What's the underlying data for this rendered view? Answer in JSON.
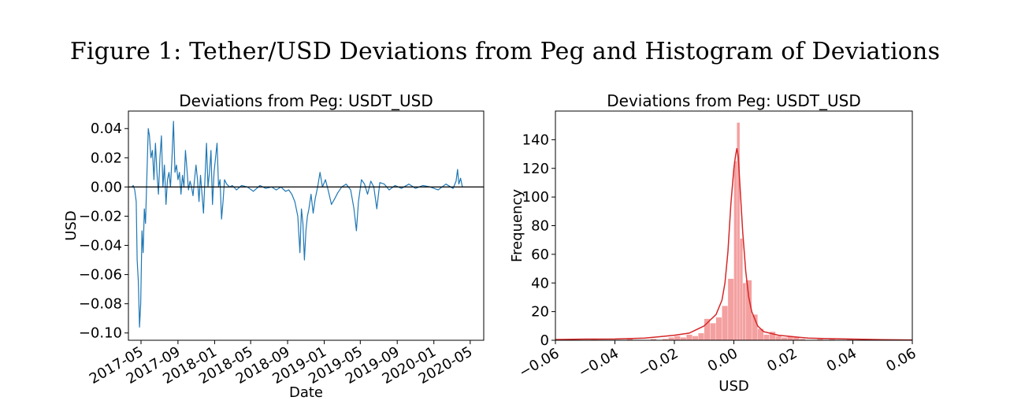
{
  "figure_title": "Figure 1: Tether/USD Deviations from Peg and Histogram of Deviations",
  "chart_data": [
    {
      "type": "line",
      "title": "Deviations from Peg: USDT_USD",
      "xlabel": "Date",
      "ylabel": "USD",
      "x_ticks": [
        "2017-05",
        "2017-09",
        "2018-01",
        "2018-05",
        "2018-09",
        "2019-01",
        "2019-05",
        "2019-09",
        "2020-01",
        "2020-05"
      ],
      "y_ticks": [
        "0.04",
        "0.02",
        "0.00",
        "−0.02",
        "−0.04",
        "−0.06",
        "−0.08",
        "−0.10"
      ],
      "ylim": [
        -0.105,
        0.052
      ],
      "xlim": [
        "2017-03-20",
        "2020-06-15"
      ],
      "hline": 0.0,
      "series": [
        {
          "color": "#1f77b4",
          "points": [
            [
              "2017-04-01",
              0.0
            ],
            [
              "2017-04-05",
              0.001
            ],
            [
              "2017-04-10",
              -0.002
            ],
            [
              "2017-04-15",
              -0.01
            ],
            [
              "2017-04-18",
              -0.05
            ],
            [
              "2017-04-22",
              -0.065
            ],
            [
              "2017-04-26",
              -0.096
            ],
            [
              "2017-04-30",
              -0.08
            ],
            [
              "2017-05-04",
              -0.03
            ],
            [
              "2017-05-08",
              -0.045
            ],
            [
              "2017-05-12",
              -0.015
            ],
            [
              "2017-05-16",
              -0.025
            ],
            [
              "2017-05-20",
              0.005
            ],
            [
              "2017-05-25",
              0.04
            ],
            [
              "2017-05-29",
              0.035
            ],
            [
              "2017-06-03",
              0.02
            ],
            [
              "2017-06-08",
              0.025
            ],
            [
              "2017-06-13",
              0.005
            ],
            [
              "2017-06-18",
              0.03
            ],
            [
              "2017-06-23",
              0.01
            ],
            [
              "2017-06-28",
              -0.005
            ],
            [
              "2017-07-03",
              0.02
            ],
            [
              "2017-07-08",
              0.035
            ],
            [
              "2017-07-13",
              0.0
            ],
            [
              "2017-07-18",
              0.015
            ],
            [
              "2017-07-23",
              -0.012
            ],
            [
              "2017-07-28",
              0.005
            ],
            [
              "2017-08-02",
              0.01
            ],
            [
              "2017-08-07",
              0.0
            ],
            [
              "2017-08-12",
              0.02
            ],
            [
              "2017-08-17",
              0.045
            ],
            [
              "2017-08-22",
              0.01
            ],
            [
              "2017-08-27",
              0.015
            ],
            [
              "2017-09-01",
              0.005
            ],
            [
              "2017-09-06",
              0.01
            ],
            [
              "2017-09-11",
              -0.005
            ],
            [
              "2017-09-16",
              0.008
            ],
            [
              "2017-09-21",
              0.0
            ],
            [
              "2017-09-26",
              0.025
            ],
            [
              "2017-10-01",
              0.012
            ],
            [
              "2017-10-06",
              -0.002
            ],
            [
              "2017-10-11",
              0.004
            ],
            [
              "2017-10-16",
              0.0
            ],
            [
              "2017-10-21",
              -0.006
            ],
            [
              "2017-10-26",
              0.005
            ],
            [
              "2017-10-31",
              0.015
            ],
            [
              "2017-11-05",
              0.005
            ],
            [
              "2017-11-10",
              -0.01
            ],
            [
              "2017-11-15",
              0.008
            ],
            [
              "2017-11-20",
              -0.005
            ],
            [
              "2017-11-25",
              -0.018
            ],
            [
              "2017-11-30",
              0.006
            ],
            [
              "2017-12-05",
              0.03
            ],
            [
              "2017-12-10",
              0.0
            ],
            [
              "2017-12-15",
              0.01
            ],
            [
              "2017-12-20",
              0.025
            ],
            [
              "2017-12-25",
              -0.012
            ],
            [
              "2017-12-30",
              0.01
            ],
            [
              "2018-01-04",
              0.02
            ],
            [
              "2018-01-09",
              0.03
            ],
            [
              "2018-01-14",
              0.0
            ],
            [
              "2018-01-19",
              0.005
            ],
            [
              "2018-01-24",
              -0.022
            ],
            [
              "2018-01-29",
              -0.01
            ],
            [
              "2018-02-03",
              0.005
            ],
            [
              "2018-02-10",
              0.002
            ],
            [
              "2018-02-20",
              0.0
            ],
            [
              "2018-03-01",
              0.001
            ],
            [
              "2018-03-15",
              -0.002
            ],
            [
              "2018-04-01",
              0.001
            ],
            [
              "2018-04-20",
              0.0
            ],
            [
              "2018-05-10",
              -0.003
            ],
            [
              "2018-06-01",
              0.001
            ],
            [
              "2018-06-20",
              -0.001
            ],
            [
              "2018-07-10",
              0.0
            ],
            [
              "2018-07-25",
              -0.002
            ],
            [
              "2018-08-10",
              0.0
            ],
            [
              "2018-08-25",
              -0.003
            ],
            [
              "2018-09-05",
              -0.002
            ],
            [
              "2018-09-15",
              -0.005
            ],
            [
              "2018-09-25",
              -0.01
            ],
            [
              "2018-10-05",
              -0.02
            ],
            [
              "2018-10-12",
              -0.045
            ],
            [
              "2018-10-17",
              -0.015
            ],
            [
              "2018-10-22",
              -0.025
            ],
            [
              "2018-10-27",
              -0.05
            ],
            [
              "2018-11-01",
              -0.03
            ],
            [
              "2018-11-06",
              -0.02
            ],
            [
              "2018-11-11",
              -0.015
            ],
            [
              "2018-11-18",
              -0.005
            ],
            [
              "2018-11-25",
              -0.018
            ],
            [
              "2018-12-02",
              -0.008
            ],
            [
              "2018-12-10",
              0.0
            ],
            [
              "2018-12-18",
              0.01
            ],
            [
              "2018-12-26",
              0.0
            ],
            [
              "2019-01-05",
              0.005
            ],
            [
              "2019-01-15",
              -0.003
            ],
            [
              "2019-01-25",
              -0.012
            ],
            [
              "2019-02-05",
              -0.008
            ],
            [
              "2019-02-15",
              -0.004
            ],
            [
              "2019-02-28",
              0.0
            ],
            [
              "2019-03-15",
              0.002
            ],
            [
              "2019-03-30",
              -0.002
            ],
            [
              "2019-04-10",
              -0.015
            ],
            [
              "2019-04-18",
              -0.03
            ],
            [
              "2019-04-25",
              -0.01
            ],
            [
              "2019-05-05",
              0.005
            ],
            [
              "2019-05-15",
              0.002
            ],
            [
              "2019-05-25",
              -0.005
            ],
            [
              "2019-06-05",
              0.004
            ],
            [
              "2019-06-15",
              0.0
            ],
            [
              "2019-06-25",
              -0.015
            ],
            [
              "2019-07-05",
              0.003
            ],
            [
              "2019-07-20",
              0.002
            ],
            [
              "2019-08-05",
              -0.002
            ],
            [
              "2019-08-25",
              0.001
            ],
            [
              "2019-09-15",
              -0.001
            ],
            [
              "2019-10-10",
              0.002
            ],
            [
              "2019-11-01",
              -0.001
            ],
            [
              "2019-11-25",
              0.001
            ],
            [
              "2019-12-20",
              0.0
            ],
            [
              "2020-01-15",
              -0.002
            ],
            [
              "2020-02-10",
              0.002
            ],
            [
              "2020-03-05",
              -0.001
            ],
            [
              "2020-03-15",
              0.004
            ],
            [
              "2020-03-20",
              0.012
            ],
            [
              "2020-03-24",
              0.002
            ],
            [
              "2020-03-30",
              0.006
            ],
            [
              "2020-04-05",
              0.0
            ]
          ]
        }
      ]
    },
    {
      "type": "histogram",
      "title": "Deviations from Peg: USDT_USD",
      "xlabel": "USD",
      "ylabel": "Frequency",
      "x_ticks": [
        "−0.06",
        "−0.04",
        "−0.02",
        "0.00",
        "0.02",
        "0.04",
        "0.06"
      ],
      "y_ticks": [
        "0",
        "20",
        "40",
        "60",
        "80",
        "100",
        "120",
        "140"
      ],
      "xlim": [
        -0.06,
        0.06
      ],
      "ylim": [
        0,
        160
      ],
      "bar_color": "#f08080",
      "kde_color": "#d62728",
      "bins": [
        {
          "x0": -0.06,
          "x1": -0.058,
          "count": 1
        },
        {
          "x0": -0.048,
          "x1": -0.046,
          "count": 1
        },
        {
          "x0": -0.036,
          "x1": -0.034,
          "count": 1
        },
        {
          "x0": -0.028,
          "x1": -0.026,
          "count": 1
        },
        {
          "x0": -0.024,
          "x1": -0.022,
          "count": 1
        },
        {
          "x0": -0.022,
          "x1": -0.02,
          "count": 2
        },
        {
          "x0": -0.02,
          "x1": -0.018,
          "count": 3
        },
        {
          "x0": -0.018,
          "x1": -0.016,
          "count": 2
        },
        {
          "x0": -0.016,
          "x1": -0.014,
          "count": 4
        },
        {
          "x0": -0.014,
          "x1": -0.012,
          "count": 3
        },
        {
          "x0": -0.012,
          "x1": -0.01,
          "count": 5
        },
        {
          "x0": -0.01,
          "x1": -0.008,
          "count": 15
        },
        {
          "x0": -0.008,
          "x1": -0.006,
          "count": 12
        },
        {
          "x0": -0.006,
          "x1": -0.004,
          "count": 16
        },
        {
          "x0": -0.004,
          "x1": -0.002,
          "count": 24
        },
        {
          "x0": -0.002,
          "x1": 0.0,
          "count": 43
        },
        {
          "x0": 0.0,
          "x1": 0.001,
          "count": 125
        },
        {
          "x0": 0.001,
          "x1": 0.002,
          "count": 152
        },
        {
          "x0": 0.002,
          "x1": 0.003,
          "count": 71
        },
        {
          "x0": 0.003,
          "x1": 0.004,
          "count": 40
        },
        {
          "x0": 0.004,
          "x1": 0.006,
          "count": 42
        },
        {
          "x0": 0.006,
          "x1": 0.008,
          "count": 18
        },
        {
          "x0": 0.008,
          "x1": 0.01,
          "count": 8
        },
        {
          "x0": 0.01,
          "x1": 0.012,
          "count": 4
        },
        {
          "x0": 0.012,
          "x1": 0.014,
          "count": 6
        },
        {
          "x0": 0.014,
          "x1": 0.016,
          "count": 3
        },
        {
          "x0": 0.016,
          "x1": 0.018,
          "count": 2
        },
        {
          "x0": 0.018,
          "x1": 0.02,
          "count": 3
        },
        {
          "x0": 0.02,
          "x1": 0.022,
          "count": 2
        },
        {
          "x0": 0.022,
          "x1": 0.024,
          "count": 1
        },
        {
          "x0": 0.028,
          "x1": 0.03,
          "count": 1
        },
        {
          "x0": 0.032,
          "x1": 0.034,
          "count": 1
        },
        {
          "x0": 0.038,
          "x1": 0.04,
          "count": 1
        },
        {
          "x0": 0.044,
          "x1": 0.046,
          "count": 1
        }
      ],
      "kde": [
        [
          -0.06,
          0.5
        ],
        [
          -0.05,
          0.8
        ],
        [
          -0.04,
          0.9
        ],
        [
          -0.03,
          1.5
        ],
        [
          -0.025,
          2.5
        ],
        [
          -0.02,
          3.5
        ],
        [
          -0.015,
          5
        ],
        [
          -0.01,
          10
        ],
        [
          -0.008,
          14
        ],
        [
          -0.006,
          18
        ],
        [
          -0.004,
          28
        ],
        [
          -0.003,
          40
        ],
        [
          -0.002,
          62
        ],
        [
          -0.001,
          95
        ],
        [
          0.0,
          120
        ],
        [
          0.0005,
          128
        ],
        [
          0.001,
          134
        ],
        [
          0.0015,
          128
        ],
        [
          0.002,
          110
        ],
        [
          0.003,
          75
        ],
        [
          0.004,
          48
        ],
        [
          0.005,
          30
        ],
        [
          0.006,
          20
        ],
        [
          0.008,
          10
        ],
        [
          0.01,
          6
        ],
        [
          0.015,
          3.5
        ],
        [
          0.02,
          2.5
        ],
        [
          0.025,
          1.5
        ],
        [
          0.03,
          1.2
        ],
        [
          0.04,
          0.8
        ],
        [
          0.05,
          0.4
        ],
        [
          0.06,
          0.2
        ]
      ]
    }
  ]
}
